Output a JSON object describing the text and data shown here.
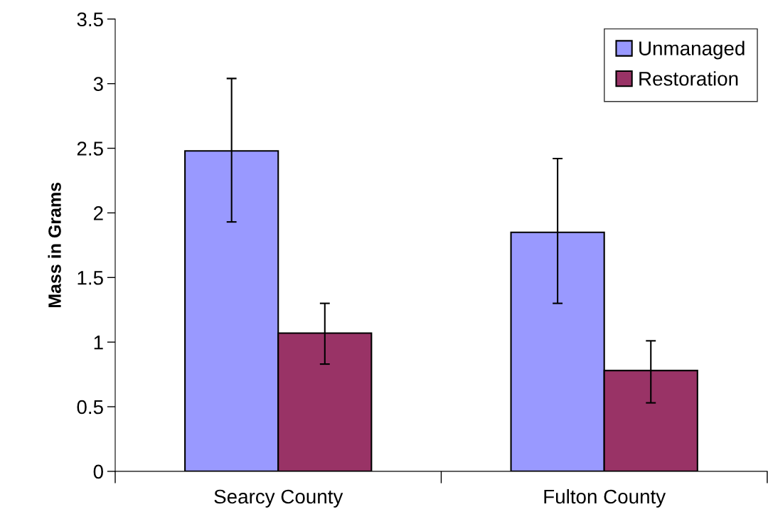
{
  "chart_data": {
    "type": "bar",
    "ylabel": "Mass in Grams",
    "categories": [
      "Searcy County",
      "Fulton County"
    ],
    "series": [
      {
        "name": "Unmanaged",
        "color": "#9999ff",
        "values": [
          2.48,
          1.85
        ],
        "errors": [
          [
            1.93,
            3.04
          ],
          [
            1.3,
            2.42
          ]
        ]
      },
      {
        "name": "Restoration",
        "color": "#993366",
        "values": [
          1.07,
          0.78
        ],
        "errors": [
          [
            0.83,
            1.3
          ],
          [
            0.53,
            1.01
          ]
        ]
      }
    ],
    "ylim": [
      0,
      3.5
    ],
    "yticks": [
      0,
      0.5,
      1,
      1.5,
      2,
      2.5,
      3,
      3.5
    ],
    "grid": false,
    "legend": "top right"
  }
}
